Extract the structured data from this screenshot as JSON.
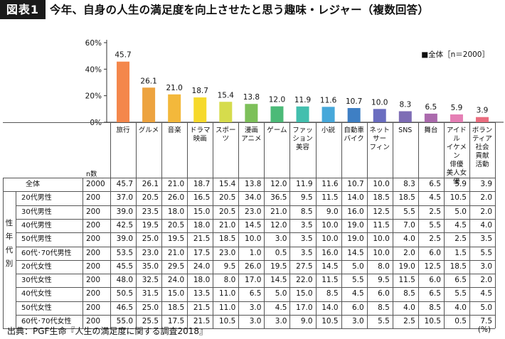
{
  "header": {
    "fig_tag": "図表1",
    "title": "今年、自身の人生の満足度を向上させたと思う趣味・レジャー（複数回答）"
  },
  "chart_data": {
    "type": "bar",
    "categories": [
      "旅行",
      "グルメ",
      "音楽",
      "ドラマ映画",
      "スポーツ",
      "漫画アニメ",
      "ゲーム",
      "ファッション美容",
      "小説",
      "自動車バイク",
      "ネットサーフィン",
      "SNS",
      "舞台",
      "アイドルイケメン俳優美人女優",
      "ボランティア社会貢献活動"
    ],
    "category_display": [
      "旅行",
      "グルメ",
      "音楽",
      "ドラマ\n映画",
      "スポー\nツ",
      "漫画\nアニメ",
      "ゲーム",
      "ファッ\nション\n美容",
      "小説",
      "自動車\nバイク",
      "ネット\nサー\nフィン",
      "SNS",
      "舞台",
      "アイドル\nイケメン\n俳優\n美人女優",
      "ボラン\nティア\n社会\n貢献\n活動"
    ],
    "series": [
      {
        "name": "全体",
        "values": [
          45.7,
          26.1,
          21.0,
          18.7,
          15.4,
          13.8,
          12.0,
          11.9,
          11.6,
          10.7,
          10.0,
          8.3,
          6.5,
          5.9,
          3.9
        ]
      }
    ],
    "value_labels": [
      "45.7",
      "26.1",
      "21.0",
      "18.7",
      "15.4",
      "13.8",
      "12.0",
      "11.9",
      "11.6",
      "10.7",
      "10.0",
      "8.3",
      "6.5",
      "5.9",
      "3.9"
    ],
    "colors": [
      "#f4874b",
      "#eda33f",
      "#f3b83b",
      "#f6d92b",
      "#d6dc4c",
      "#7dc05a",
      "#4cba78",
      "#43bfae",
      "#47a8da",
      "#3e7fc4",
      "#6a6dc0",
      "#7e6db5",
      "#ab6aad",
      "#e57fb5",
      "#ea6d7f"
    ],
    "yticks": [
      "0%",
      "20%",
      "40%",
      "60%"
    ],
    "ylim": [
      0,
      60
    ],
    "legend": "■全体［n＝2000］",
    "legend_position": "top-right",
    "grid": false
  },
  "table": {
    "n_header": "n数",
    "side_label": "性\n年\n代\n別",
    "overall": {
      "label": "全体",
      "n": "2000",
      "values": [
        "45.7",
        "26.1",
        "21.0",
        "18.7",
        "15.4",
        "13.8",
        "12.0",
        "11.9",
        "11.6",
        "10.7",
        "10.0",
        "8.3",
        "6.5",
        "5.9",
        "3.9"
      ]
    },
    "rows": [
      {
        "label": "20代男性",
        "n": "200",
        "values": [
          "37.0",
          "20.5",
          "26.0",
          "16.5",
          "20.5",
          "34.0",
          "36.5",
          "9.5",
          "11.5",
          "14.0",
          "18.5",
          "18.5",
          "4.5",
          "10.5",
          "2.0"
        ]
      },
      {
        "label": "30代男性",
        "n": "200",
        "values": [
          "39.0",
          "23.5",
          "18.0",
          "15.0",
          "20.5",
          "23.0",
          "21.0",
          "8.5",
          "9.0",
          "16.0",
          "12.5",
          "5.5",
          "2.5",
          "5.0",
          "2.0"
        ]
      },
      {
        "label": "40代男性",
        "n": "200",
        "values": [
          "42.5",
          "19.5",
          "20.5",
          "18.0",
          "21.0",
          "14.5",
          "12.0",
          "3.5",
          "10.0",
          "19.0",
          "11.5",
          "7.0",
          "5.5",
          "4.5",
          "4.0"
        ]
      },
      {
        "label": "50代男性",
        "n": "200",
        "values": [
          "39.0",
          "25.0",
          "19.5",
          "21.5",
          "18.5",
          "10.0",
          "3.0",
          "3.5",
          "10.0",
          "19.0",
          "10.0",
          "4.0",
          "2.5",
          "2.5",
          "3.5"
        ]
      },
      {
        "label": "60代･70代男性",
        "n": "200",
        "values": [
          "53.5",
          "23.0",
          "21.0",
          "17.5",
          "23.0",
          "1.0",
          "0.5",
          "3.5",
          "16.0",
          "14.5",
          "10.0",
          "2.0",
          "6.0",
          "1.5",
          "5.5"
        ]
      },
      {
        "label": "20代女性",
        "n": "200",
        "values": [
          "45.5",
          "35.0",
          "29.5",
          "24.0",
          "9.5",
          "26.0",
          "19.5",
          "27.5",
          "14.5",
          "5.0",
          "8.0",
          "19.0",
          "12.5",
          "18.5",
          "3.0"
        ]
      },
      {
        "label": "30代女性",
        "n": "200",
        "values": [
          "48.0",
          "32.5",
          "24.0",
          "18.0",
          "8.0",
          "17.0",
          "14.5",
          "22.0",
          "11.5",
          "5.5",
          "9.5",
          "11.5",
          "6.0",
          "6.5",
          "2.0"
        ]
      },
      {
        "label": "40代女性",
        "n": "200",
        "values": [
          "50.5",
          "31.5",
          "15.0",
          "13.5",
          "11.0",
          "6.5",
          "5.0",
          "15.0",
          "8.5",
          "4.5",
          "6.0",
          "8.5",
          "6.5",
          "5.5",
          "4.5"
        ]
      },
      {
        "label": "50代女性",
        "n": "200",
        "values": [
          "46.5",
          "25.0",
          "18.5",
          "21.5",
          "11.0",
          "3.0",
          "4.5",
          "17.0",
          "14.0",
          "6.0",
          "8.5",
          "4.0",
          "8.5",
          "4.0",
          "5.0"
        ]
      },
      {
        "label": "60代･70代女性",
        "n": "200",
        "values": [
          "55.0",
          "25.5",
          "17.5",
          "21.5",
          "10.5",
          "3.0",
          "3.0",
          "9.0",
          "10.5",
          "3.0",
          "5.5",
          "2.5",
          "10.5",
          "0.5",
          "7.5"
        ]
      }
    ]
  },
  "footer": {
    "source": "出典：PGF生命『人生の満足度に関する調査2018』",
    "unit": "(%)"
  }
}
